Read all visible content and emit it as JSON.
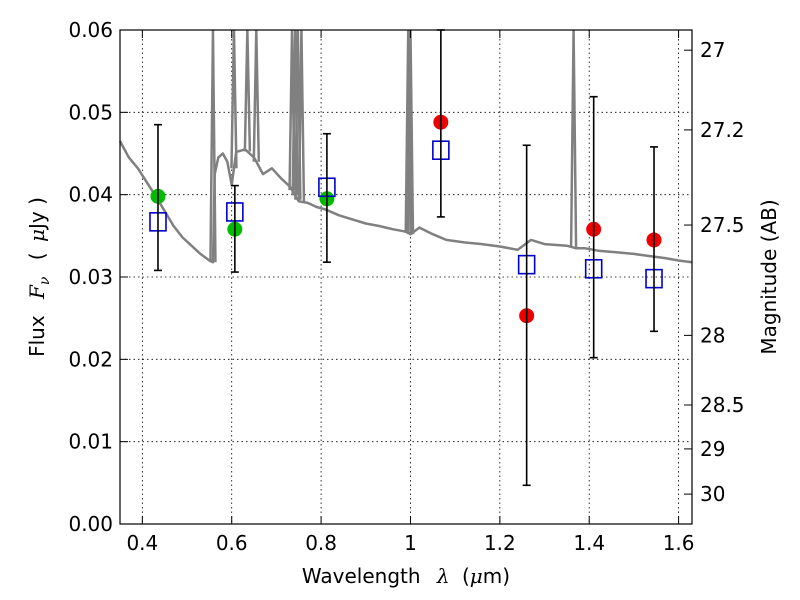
{
  "chart_data": {
    "type": "scatter",
    "xlabel": {
      "prefix": "Wavelength",
      "symbol": "λ",
      "unit_open": "(",
      "unit_mu": "μ",
      "unit_rest": "m)"
    },
    "ylabel": {
      "prefix": "Flux",
      "symbol": "F",
      "subscript": "ν",
      "unit_open": "(",
      "unit_mu": "μ",
      "unit_rest": "Jy )"
    },
    "y2label": "Magnitude (AB)",
    "xlim": [
      0.35,
      1.63
    ],
    "ylim": [
      0.0,
      0.06
    ],
    "x_ticks": [
      {
        "value": 0.4,
        "label": "0.4"
      },
      {
        "value": 0.6,
        "label": "0.6"
      },
      {
        "value": 0.8,
        "label": "0.8"
      },
      {
        "value": 1.0,
        "label": "1"
      },
      {
        "value": 1.2,
        "label": "1.2"
      },
      {
        "value": 1.4,
        "label": "1.4"
      },
      {
        "value": 1.6,
        "label": "1.6"
      }
    ],
    "y_ticks": [
      {
        "value": 0.0,
        "label": "0.00"
      },
      {
        "value": 0.01,
        "label": "0.01"
      },
      {
        "value": 0.02,
        "label": "0.02"
      },
      {
        "value": 0.03,
        "label": "0.03"
      },
      {
        "value": 0.04,
        "label": "0.04"
      },
      {
        "value": 0.05,
        "label": "0.05"
      },
      {
        "value": 0.06,
        "label": "0.06"
      }
    ],
    "y2_ticks": [
      {
        "label": "27",
        "mag": 27.0
      },
      {
        "label": "27.2",
        "mag": 27.2
      },
      {
        "label": "27.5",
        "mag": 27.5
      },
      {
        "label": "28",
        "mag": 28.0
      },
      {
        "label": "28.5",
        "mag": 28.5
      },
      {
        "label": "29",
        "mag": 29.0
      },
      {
        "label": "30",
        "mag": 30.0
      }
    ],
    "grid": true,
    "colors": {
      "model_line": "#808080",
      "green_points": "#00bb00",
      "red_points": "#ee0000",
      "model_boxes": "#0000cc",
      "error_bars": "#000000"
    },
    "series": [
      {
        "kind": "line",
        "x": [
          0.35,
          0.37,
          0.39,
          0.41,
          0.43,
          0.45,
          0.47,
          0.49,
          0.51,
          0.53,
          0.55,
          0.558,
          0.562,
          0.57,
          0.58,
          0.59,
          0.6,
          0.61,
          0.63,
          0.65,
          0.67,
          0.69,
          0.71,
          0.73,
          0.75,
          0.77,
          0.79,
          0.81,
          0.84,
          0.87,
          0.9,
          0.93,
          0.96,
          0.99,
          1.0,
          1.02,
          1.05,
          1.08,
          1.12,
          1.16,
          1.2,
          1.24,
          1.27,
          1.3,
          1.35,
          1.37,
          1.39,
          1.42,
          1.46,
          1.5,
          1.54,
          1.57,
          1.6,
          1.63
        ],
        "y": [
          0.0465,
          0.0445,
          0.0432,
          0.0415,
          0.0398,
          0.038,
          0.0362,
          0.0348,
          0.0338,
          0.0328,
          0.032,
          0.0318,
          0.0425,
          0.0445,
          0.045,
          0.044,
          0.0412,
          0.0452,
          0.0455,
          0.0445,
          0.0425,
          0.0432,
          0.042,
          0.041,
          0.0392,
          0.039,
          0.0385,
          0.0382,
          0.0375,
          0.037,
          0.0365,
          0.0362,
          0.0358,
          0.0355,
          0.0352,
          0.036,
          0.0352,
          0.0345,
          0.0342,
          0.034,
          0.0337,
          0.0333,
          0.0345,
          0.034,
          0.0338,
          0.0335,
          0.0335,
          0.0332,
          0.033,
          0.0328,
          0.0325,
          0.0323,
          0.032,
          0.0318
        ]
      },
      {
        "kind": "spikes",
        "x": [
          0.558,
          0.605,
          0.635,
          0.655,
          0.735,
          0.742,
          0.748,
          0.756,
          0.995,
          1.0,
          1.365
        ]
      },
      {
        "kind": "points_green",
        "x": [
          0.435,
          0.607,
          0.813
        ],
        "y": [
          0.0398,
          0.0358,
          0.0395
        ]
      },
      {
        "kind": "points_red",
        "x": [
          1.068,
          1.26,
          1.41,
          1.545
        ],
        "y": [
          0.0488,
          0.0253,
          0.0358,
          0.0345
        ]
      },
      {
        "kind": "boxes",
        "x": [
          0.435,
          0.607,
          0.813,
          1.068,
          1.26,
          1.41,
          1.545
        ],
        "y": [
          0.0367,
          0.0379,
          0.0409,
          0.0454,
          0.0315,
          0.031,
          0.0298
        ]
      },
      {
        "kind": "error_bars",
        "x": [
          0.435,
          0.607,
          0.813,
          1.068,
          1.26,
          1.41,
          1.545
        ],
        "low": [
          0.0308,
          0.0306,
          0.0318,
          0.0373,
          0.0047,
          0.0202,
          0.0234
        ],
        "high": [
          0.0485,
          0.0411,
          0.0474,
          0.06,
          0.046,
          0.0519,
          0.0458
        ]
      }
    ]
  }
}
